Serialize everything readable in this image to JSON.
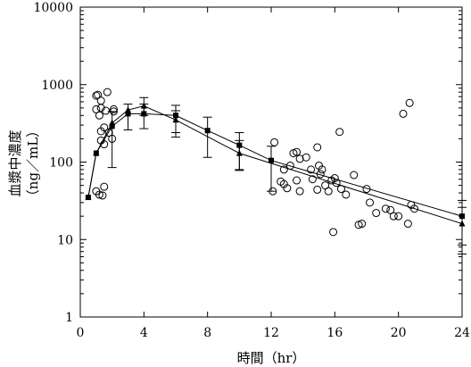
{
  "chart_data": {
    "type": "scatter",
    "xlabel": "時間（hr）",
    "ylabel_line1": "血漿中濃度",
    "ylabel_line2": "（ng／mL）",
    "xlim": [
      0,
      24
    ],
    "ylim": [
      1,
      10000
    ],
    "yscale": "log",
    "x_ticks": [
      0,
      4,
      8,
      12,
      16,
      20,
      24
    ],
    "y_ticks": [
      1,
      10,
      100,
      1000,
      10000
    ],
    "y_tick_labels": [
      "1",
      "10",
      "100",
      "1000",
      "10000"
    ],
    "grid": false,
    "legend": "none",
    "series": [
      {
        "marker": "square",
        "points": [
          {
            "x": 0.5,
            "y": 35
          },
          {
            "x": 1.0,
            "y": 130
          },
          {
            "x": 2.0,
            "y": 290,
            "lo": 85,
            "hi": 450
          },
          {
            "x": 3.0,
            "y": 420,
            "lo": 260,
            "hi": 560
          },
          {
            "x": 4.0,
            "y": 420,
            "lo": 270,
            "hi": 560
          },
          {
            "x": 6.0,
            "y": 400,
            "lo": 240,
            "hi": 540
          },
          {
            "x": 8.0,
            "y": 255,
            "lo": 115,
            "hi": 380
          },
          {
            "x": 10.0,
            "y": 165,
            "lo": 80,
            "hi": 240
          },
          {
            "x": 12.0,
            "y": 105,
            "lo": 42,
            "hi": 160
          },
          {
            "x": 24.0,
            "y": 20,
            "lo": 8.5,
            "hi": 32
          }
        ]
      },
      {
        "marker": "triangle",
        "points": [
          {
            "x": 0.5,
            "y": 35
          },
          {
            "x": 1.0,
            "y": 130
          },
          {
            "x": 2.0,
            "y": 320
          },
          {
            "x": 3.0,
            "y": 470
          },
          {
            "x": 4.0,
            "y": 530,
            "lo": 400,
            "hi": 680
          },
          {
            "x": 6.0,
            "y": 350,
            "lo": 210,
            "hi": 460
          },
          {
            "x": 10.0,
            "y": 130,
            "lo": 78,
            "hi": 190
          },
          {
            "x": 24.0,
            "y": 16,
            "lo": 6.5,
            "hi": 26
          }
        ]
      }
    ],
    "observations": [
      {
        "x": 1.0,
        "y": 720
      },
      {
        "x": 1.1,
        "y": 740
      },
      {
        "x": 1.3,
        "y": 620
      },
      {
        "x": 1.7,
        "y": 800
      },
      {
        "x": 1.0,
        "y": 480
      },
      {
        "x": 1.3,
        "y": 500
      },
      {
        "x": 1.6,
        "y": 460
      },
      {
        "x": 2.1,
        "y": 480
      },
      {
        "x": 2.1,
        "y": 450
      },
      {
        "x": 1.2,
        "y": 400
      },
      {
        "x": 1.3,
        "y": 250
      },
      {
        "x": 1.5,
        "y": 280
      },
      {
        "x": 1.3,
        "y": 190
      },
      {
        "x": 1.5,
        "y": 170
      },
      {
        "x": 1.8,
        "y": 240
      },
      {
        "x": 2.0,
        "y": 200
      },
      {
        "x": 1.0,
        "y": 42
      },
      {
        "x": 1.2,
        "y": 38
      },
      {
        "x": 1.4,
        "y": 37
      },
      {
        "x": 1.5,
        "y": 48
      },
      {
        "x": 12.2,
        "y": 180
      },
      {
        "x": 12.1,
        "y": 42
      },
      {
        "x": 12.6,
        "y": 56
      },
      {
        "x": 12.8,
        "y": 52
      },
      {
        "x": 13.0,
        "y": 46
      },
      {
        "x": 12.8,
        "y": 80
      },
      {
        "x": 13.2,
        "y": 90
      },
      {
        "x": 13.4,
        "y": 130
      },
      {
        "x": 13.6,
        "y": 135
      },
      {
        "x": 13.8,
        "y": 110
      },
      {
        "x": 13.6,
        "y": 58
      },
      {
        "x": 13.8,
        "y": 42
      },
      {
        "x": 14.2,
        "y": 115
      },
      {
        "x": 14.5,
        "y": 80
      },
      {
        "x": 14.6,
        "y": 60
      },
      {
        "x": 14.9,
        "y": 155
      },
      {
        "x": 15.0,
        "y": 90
      },
      {
        "x": 15.2,
        "y": 80
      },
      {
        "x": 15.1,
        "y": 70
      },
      {
        "x": 15.4,
        "y": 50
      },
      {
        "x": 14.9,
        "y": 44
      },
      {
        "x": 15.6,
        "y": 42
      },
      {
        "x": 15.8,
        "y": 58
      },
      {
        "x": 16.0,
        "y": 62
      },
      {
        "x": 16.1,
        "y": 54
      },
      {
        "x": 15.9,
        "y": 12.5
      },
      {
        "x": 16.3,
        "y": 245
      },
      {
        "x": 16.4,
        "y": 45
      },
      {
        "x": 16.7,
        "y": 38
      },
      {
        "x": 17.2,
        "y": 68
      },
      {
        "x": 17.5,
        "y": 15.5
      },
      {
        "x": 17.7,
        "y": 16
      },
      {
        "x": 18.0,
        "y": 45
      },
      {
        "x": 18.2,
        "y": 30
      },
      {
        "x": 18.6,
        "y": 22
      },
      {
        "x": 19.2,
        "y": 25
      },
      {
        "x": 19.5,
        "y": 24
      },
      {
        "x": 19.7,
        "y": 20
      },
      {
        "x": 20.0,
        "y": 20
      },
      {
        "x": 20.3,
        "y": 420
      },
      {
        "x": 20.7,
        "y": 580
      },
      {
        "x": 20.6,
        "y": 16
      },
      {
        "x": 20.8,
        "y": 28
      },
      {
        "x": 21.0,
        "y": 25
      }
    ]
  }
}
